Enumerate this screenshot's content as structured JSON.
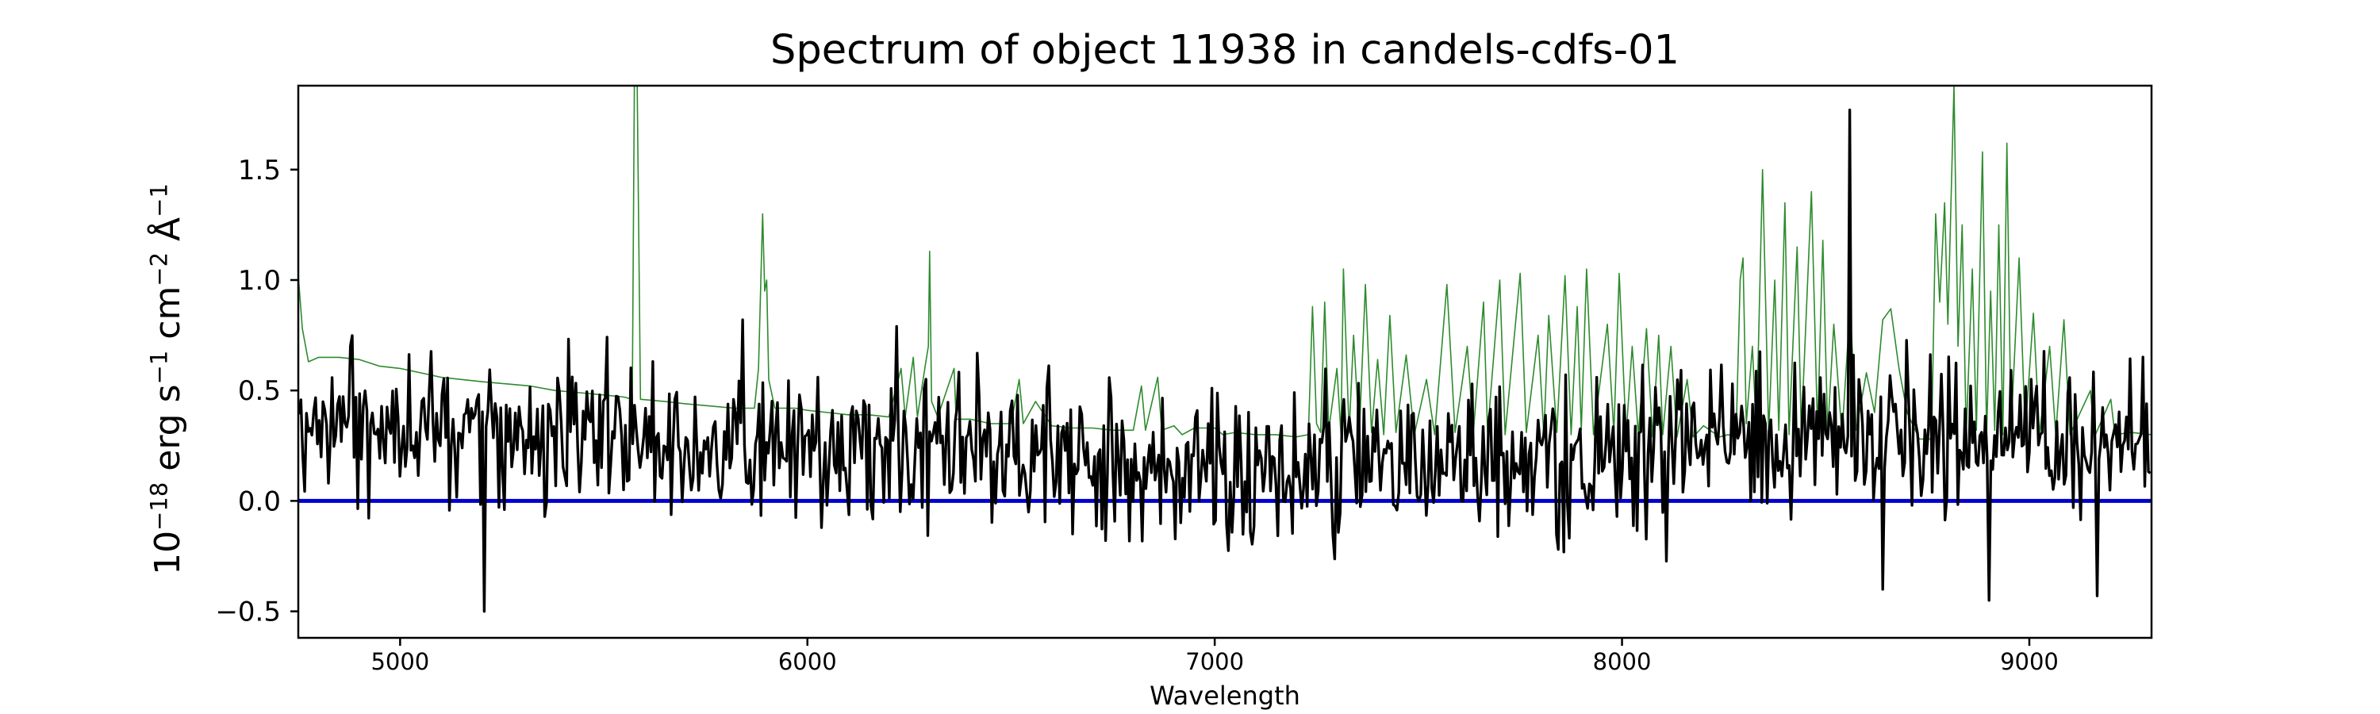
{
  "chart_data": {
    "type": "line",
    "title": "Spectrum of object 11938 in candels-cdfs-01",
    "xlabel": "Wavelength",
    "ylabel_base": "10",
    "ylabel_parts": [
      {
        "text": "−18",
        "sup": true
      },
      {
        "text": " erg s",
        "sup": false
      },
      {
        "text": "−1",
        "sup": true
      },
      {
        "text": " cm",
        "sup": false
      },
      {
        "text": "−2",
        "sup": true
      },
      {
        "text": " Å",
        "sup": false
      },
      {
        "text": "−1",
        "sup": true
      }
    ],
    "xlim": [
      4750,
      9300
    ],
    "ylim": [
      -0.62,
      1.88
    ],
    "xticks": [
      5000,
      6000,
      7000,
      8000,
      9000
    ],
    "xtick_labels": [
      "5000",
      "6000",
      "7000",
      "8000",
      "9000"
    ],
    "yticks": [
      -0.5,
      0.0,
      0.5,
      1.0,
      1.5
    ],
    "ytick_labels": [
      "−0.5",
      "0.0",
      "0.5",
      "1.0",
      "1.5"
    ],
    "grid": false,
    "legend": "none",
    "series": [
      {
        "role": "model",
        "color": "#2e8b2e",
        "width": 1.6,
        "points": [
          [
            4750,
            1.02
          ],
          [
            4760,
            0.78
          ],
          [
            4775,
            0.63
          ],
          [
            4800,
            0.65
          ],
          [
            4850,
            0.65
          ],
          [
            4900,
            0.64
          ],
          [
            4950,
            0.61
          ],
          [
            5000,
            0.6
          ],
          [
            5050,
            0.58
          ],
          [
            5100,
            0.56
          ],
          [
            5150,
            0.55
          ],
          [
            5200,
            0.54
          ],
          [
            5260,
            0.53
          ],
          [
            5320,
            0.52
          ],
          [
            5380,
            0.5
          ],
          [
            5440,
            0.49
          ],
          [
            5500,
            0.48
          ],
          [
            5550,
            0.47
          ],
          [
            5570,
            0.46
          ],
          [
            5575,
            1.88
          ],
          [
            5582,
            1.88
          ],
          [
            5590,
            0.46
          ],
          [
            5650,
            0.45
          ],
          [
            5700,
            0.44
          ],
          [
            5760,
            0.43
          ],
          [
            5820,
            0.42
          ],
          [
            5870,
            0.42
          ],
          [
            5880,
            0.6
          ],
          [
            5890,
            1.3
          ],
          [
            5895,
            0.95
          ],
          [
            5900,
            1.0
          ],
          [
            5905,
            0.55
          ],
          [
            5920,
            0.42
          ],
          [
            5970,
            0.42
          ],
          [
            6000,
            0.41
          ],
          [
            6050,
            0.4
          ],
          [
            6100,
            0.39
          ],
          [
            6150,
            0.39
          ],
          [
            6200,
            0.38
          ],
          [
            6230,
            0.6
          ],
          [
            6240,
            0.38
          ],
          [
            6260,
            0.65
          ],
          [
            6270,
            0.38
          ],
          [
            6290,
            0.62
          ],
          [
            6297,
            0.7
          ],
          [
            6300,
            1.13
          ],
          [
            6305,
            0.45
          ],
          [
            6320,
            0.38
          ],
          [
            6360,
            0.6
          ],
          [
            6365,
            0.37
          ],
          [
            6400,
            0.37
          ],
          [
            6450,
            0.35
          ],
          [
            6500,
            0.35
          ],
          [
            6520,
            0.55
          ],
          [
            6530,
            0.35
          ],
          [
            6560,
            0.45
          ],
          [
            6600,
            0.34
          ],
          [
            6650,
            0.33
          ],
          [
            6700,
            0.33
          ],
          [
            6750,
            0.32
          ],
          [
            6800,
            0.32
          ],
          [
            6820,
            0.52
          ],
          [
            6830,
            0.32
          ],
          [
            6860,
            0.56
          ],
          [
            6870,
            0.32
          ],
          [
            6900,
            0.34
          ],
          [
            6920,
            0.3
          ],
          [
            6950,
            0.33
          ],
          [
            7000,
            0.33
          ],
          [
            7020,
            0.3
          ],
          [
            7050,
            0.31
          ],
          [
            7100,
            0.3
          ],
          [
            7150,
            0.3
          ],
          [
            7200,
            0.29
          ],
          [
            7230,
            0.3
          ],
          [
            7240,
            0.88
          ],
          [
            7250,
            0.35
          ],
          [
            7260,
            0.31
          ],
          [
            7270,
            0.9
          ],
          [
            7280,
            0.32
          ],
          [
            7300,
            0.6
          ],
          [
            7310,
            0.3
          ],
          [
            7316,
            1.05
          ],
          [
            7330,
            0.31
          ],
          [
            7341,
            0.75
          ],
          [
            7355,
            0.3
          ],
          [
            7370,
            0.98
          ],
          [
            7385,
            0.31
          ],
          [
            7400,
            0.64
          ],
          [
            7415,
            0.3
          ],
          [
            7430,
            0.84
          ],
          [
            7445,
            0.31
          ],
          [
            7470,
            0.66
          ],
          [
            7490,
            0.3
          ],
          [
            7520,
            0.55
          ],
          [
            7540,
            0.3
          ],
          [
            7570,
            0.98
          ],
          [
            7590,
            0.31
          ],
          [
            7620,
            0.7
          ],
          [
            7635,
            0.31
          ],
          [
            7660,
            0.9
          ],
          [
            7670,
            0.31
          ],
          [
            7700,
            1.0
          ],
          [
            7713,
            0.3
          ],
          [
            7750,
            1.03
          ],
          [
            7765,
            0.31
          ],
          [
            7794,
            0.75
          ],
          [
            7808,
            0.3
          ],
          [
            7820,
            0.84
          ],
          [
            7840,
            0.31
          ],
          [
            7860,
            1.02
          ],
          [
            7875,
            0.3
          ],
          [
            7890,
            0.88
          ],
          [
            7900,
            0.32
          ],
          [
            7913,
            1.05
          ],
          [
            7930,
            0.3
          ],
          [
            7964,
            0.8
          ],
          [
            7980,
            0.31
          ],
          [
            7993,
            1.03
          ],
          [
            8010,
            0.3
          ],
          [
            8025,
            0.7
          ],
          [
            8040,
            0.3
          ],
          [
            8060,
            0.78
          ],
          [
            8075,
            0.29
          ],
          [
            8090,
            0.75
          ],
          [
            8100,
            0.3
          ],
          [
            8120,
            0.7
          ],
          [
            8135,
            0.29
          ],
          [
            8160,
            0.55
          ],
          [
            8175,
            0.29
          ],
          [
            8200,
            0.34
          ],
          [
            8240,
            0.29
          ],
          [
            8260,
            0.3
          ],
          [
            8280,
            0.29
          ],
          [
            8290,
            1.0
          ],
          [
            8297,
            1.1
          ],
          [
            8305,
            0.35
          ],
          [
            8320,
            0.7
          ],
          [
            8330,
            0.31
          ],
          [
            8345,
            1.5
          ],
          [
            8360,
            0.31
          ],
          [
            8375,
            1.0
          ],
          [
            8385,
            0.32
          ],
          [
            8400,
            1.35
          ],
          [
            8410,
            0.3
          ],
          [
            8430,
            1.15
          ],
          [
            8440,
            0.31
          ],
          [
            8465,
            1.4
          ],
          [
            8480,
            0.32
          ],
          [
            8493,
            1.18
          ],
          [
            8505,
            0.31
          ],
          [
            8520,
            0.8
          ],
          [
            8540,
            0.3
          ],
          [
            8560,
            0.88
          ],
          [
            8575,
            0.32
          ],
          [
            8600,
            0.58
          ],
          [
            8620,
            0.4
          ],
          [
            8640,
            0.82
          ],
          [
            8660,
            0.87
          ],
          [
            8680,
            0.6
          ],
          [
            8700,
            0.4
          ],
          [
            8730,
            0.28
          ],
          [
            8760,
            0.28
          ],
          [
            8770,
            1.3
          ],
          [
            8780,
            0.9
          ],
          [
            8792,
            1.35
          ],
          [
            8800,
            0.8
          ],
          [
            8815,
            1.88
          ],
          [
            8825,
            0.7
          ],
          [
            8835,
            1.25
          ],
          [
            8845,
            0.3
          ],
          [
            8860,
            1.05
          ],
          [
            8870,
            0.32
          ],
          [
            8885,
            1.58
          ],
          [
            8895,
            0.3
          ],
          [
            8905,
            0.95
          ],
          [
            8915,
            0.32
          ],
          [
            8925,
            1.25
          ],
          [
            8935,
            0.3
          ],
          [
            8945,
            1.62
          ],
          [
            8955,
            0.32
          ],
          [
            8975,
            1.1
          ],
          [
            8990,
            0.31
          ],
          [
            9010,
            0.85
          ],
          [
            9025,
            0.3
          ],
          [
            9050,
            0.7
          ],
          [
            9065,
            0.3
          ],
          [
            9085,
            0.82
          ],
          [
            9100,
            0.3
          ],
          [
            9150,
            0.5
          ],
          [
            9160,
            0.29
          ],
          [
            9200,
            0.46
          ],
          [
            9210,
            0.3
          ],
          [
            9250,
            0.31
          ],
          [
            9300,
            0.3
          ]
        ]
      },
      {
        "role": "zero-line",
        "color": "#0000cc",
        "width": 5,
        "points": [
          [
            4750,
            0.0
          ],
          [
            9300,
            0.0
          ]
        ]
      },
      {
        "role": "spectrum",
        "color": "#000000",
        "width": 3.4,
        "generator": {
          "seed": 11938,
          "xstart": 4752,
          "xend": 9298,
          "step": 4.5,
          "baseline": [
            [
              4750,
              0.28
            ],
            [
              5000,
              0.3
            ],
            [
              6000,
              0.26
            ],
            [
              6500,
              0.2
            ],
            [
              6800,
              0.15
            ],
            [
              7000,
              0.16
            ],
            [
              8000,
              0.18
            ],
            [
              8300,
              0.25
            ],
            [
              9000,
              0.3
            ],
            [
              9300,
              0.3
            ]
          ],
          "amplitude": 0.17,
          "features": [
            [
              5208,
              -0.5
            ],
            [
              5840,
              0.82
            ],
            [
              6220,
              0.79
            ],
            [
              8560,
              1.77
            ],
            [
              8640,
              -0.4
            ],
            [
              8900,
              -0.45
            ],
            [
              9165,
              -0.43
            ]
          ]
        }
      }
    ]
  }
}
